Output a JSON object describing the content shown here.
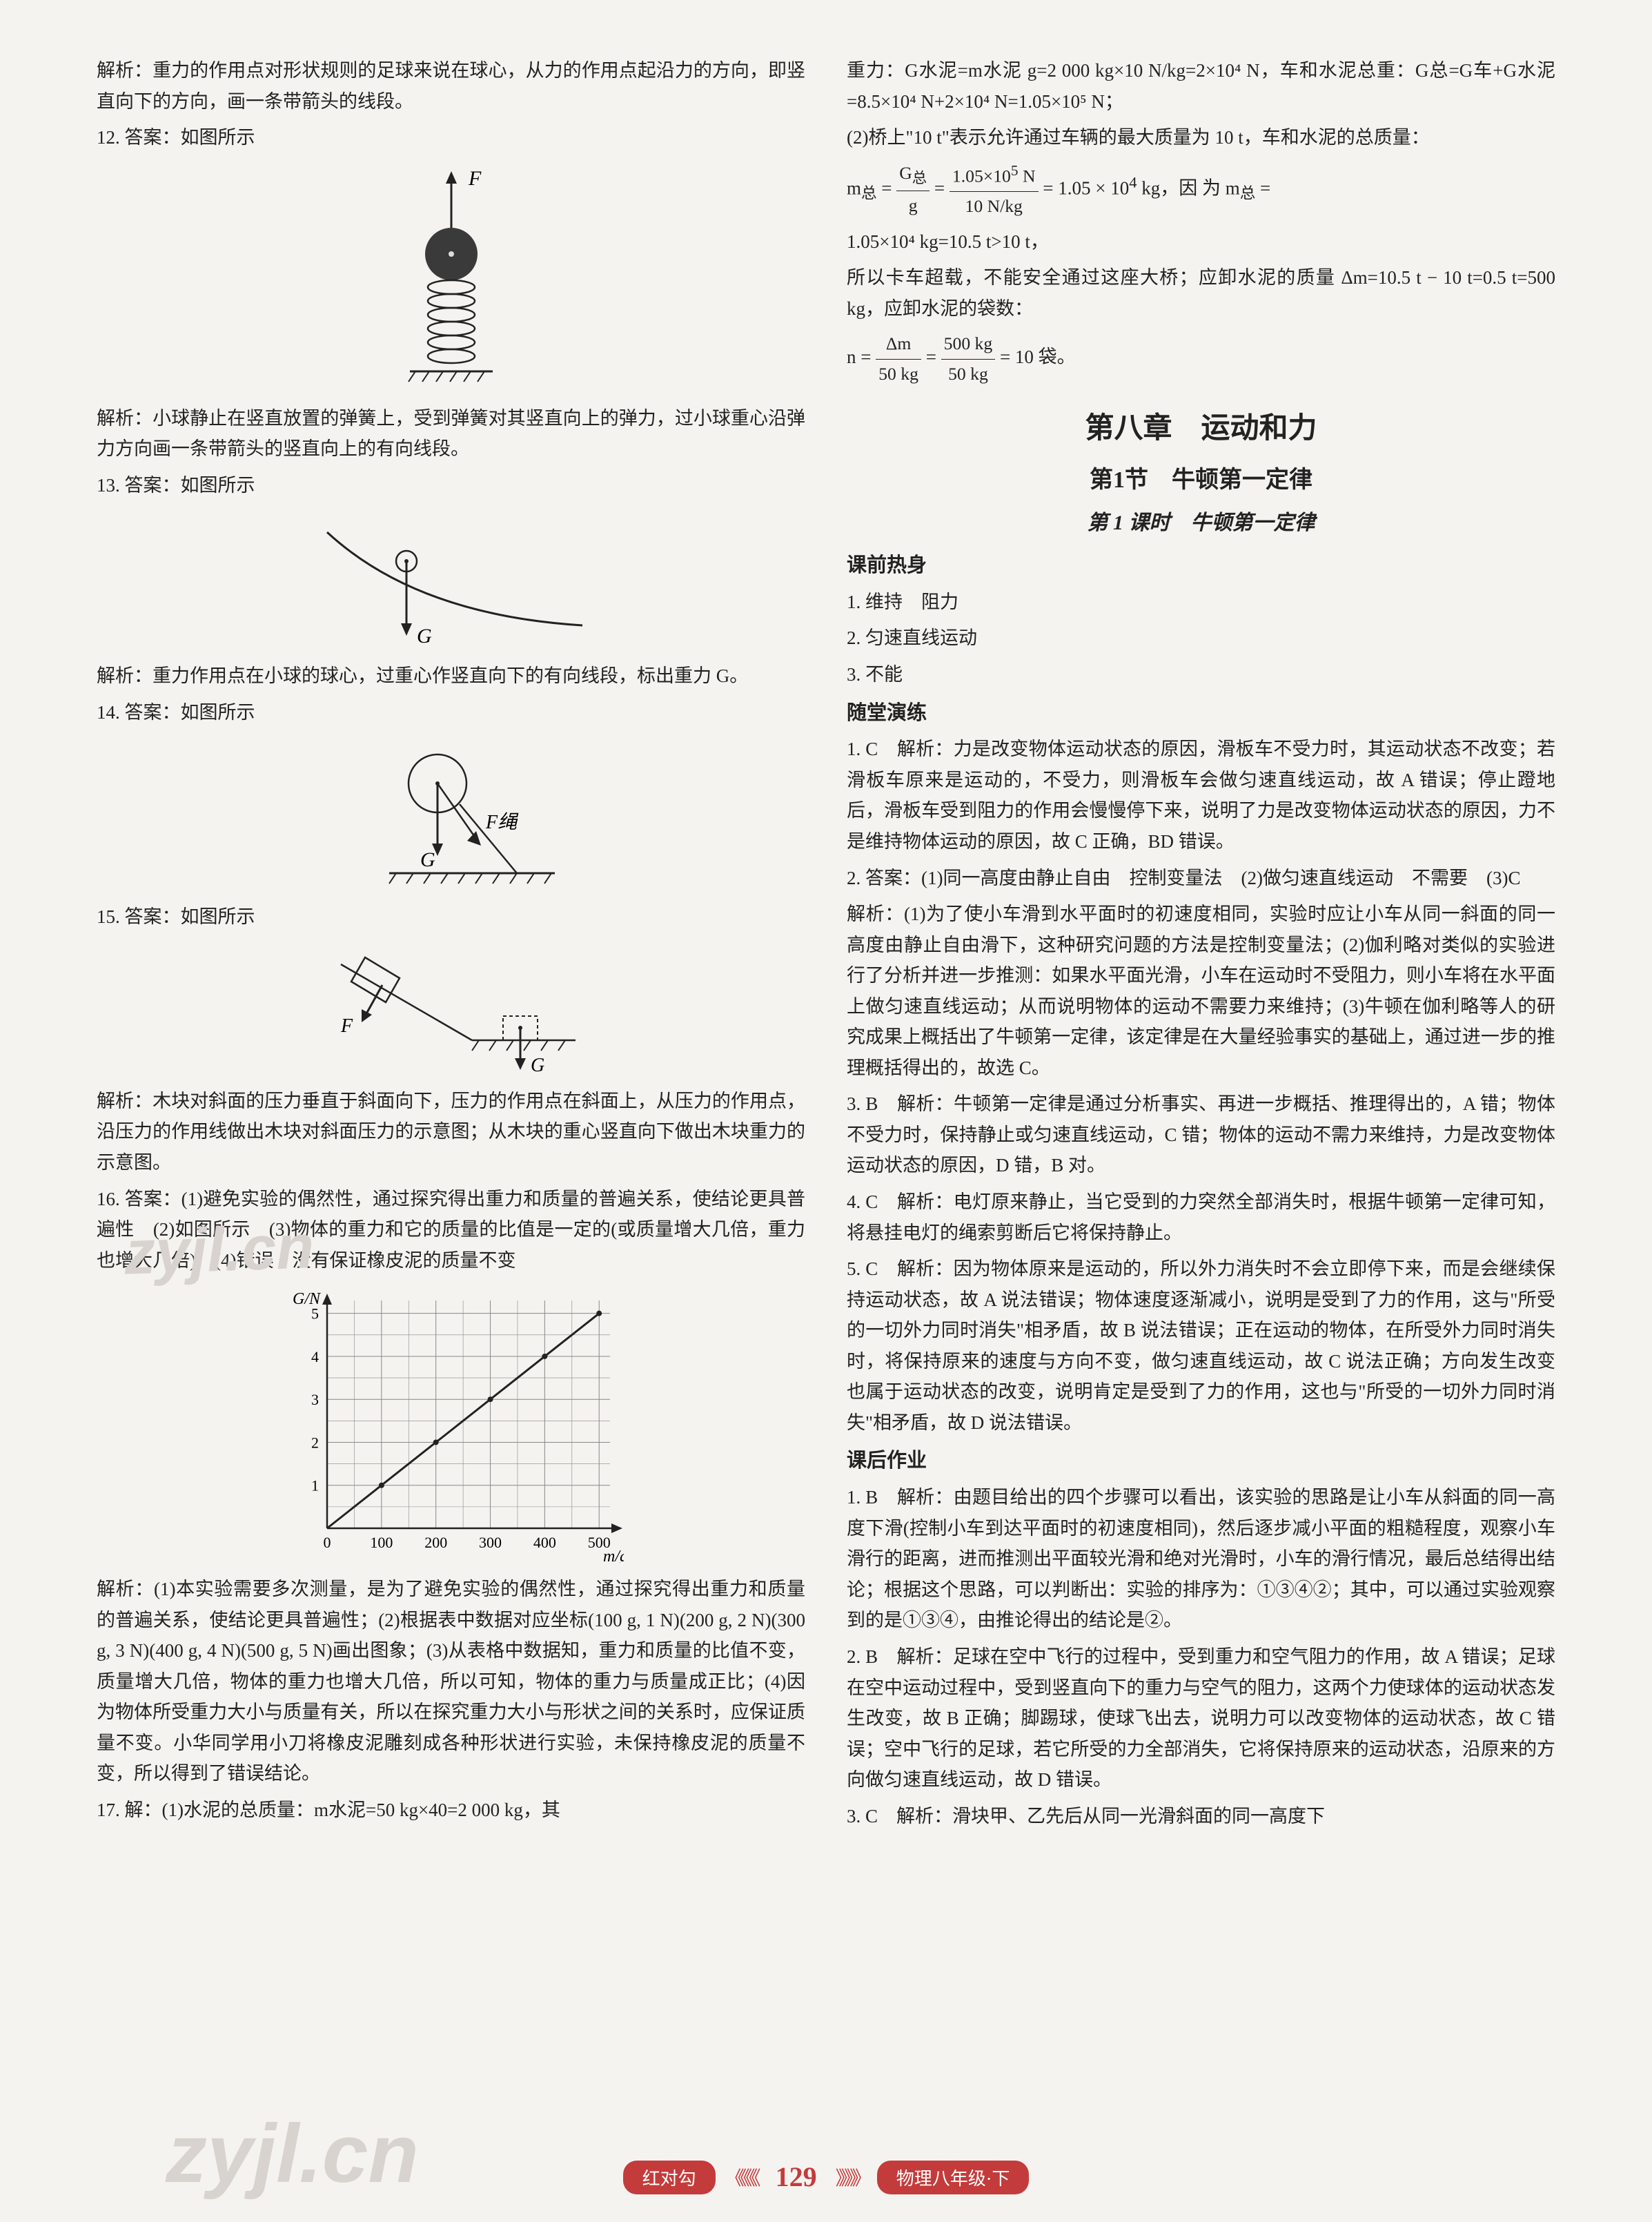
{
  "left": {
    "analysis_11": "解析：重力的作用点对形状规则的足球来说在球心，从力的作用点起沿力的方向，即竖直向下的方向，画一条带箭头的线段。",
    "item12_label": "12. 答案：如图所示",
    "item12_analysis": "解析：小球静止在竖直放置的弹簧上，受到弹簧对其竖直向上的弹力，过小球重心沿弹力方向画一条带箭头的竖直向上的有向线段。",
    "item13_label": "13. 答案：如图所示",
    "item13_analysis": "解析：重力作用点在小球的球心，过重心作竖直向下的有向线段，标出重力 G。",
    "item14_label": "14. 答案：如图所示",
    "item15_label": "15. 答案：如图所示",
    "item15_analysis": "解析：木块对斜面的压力垂直于斜面向下，压力的作用点在斜面上，从压力的作用点，沿压力的作用线做出木块对斜面压力的示意图；从木块的重心竖直向下做出木块重力的示意图。",
    "item16_label": "16. 答案：(1)避免实验的偶然性，通过探究得出重力和质量的普遍关系，使结论更具普遍性　(2)如图所示　(3)物体的重力和它的质量的比值是一定的(或质量增大几倍，重力也增大几倍)　(4)错误　没有保证橡皮泥的质量不变",
    "item16_analysis": "解析：(1)本实验需要多次测量，是为了避免实验的偶然性，通过探究得出重力和质量的普遍关系，使结论更具普遍性；(2)根据表中数据对应坐标(100 g, 1 N)(200 g, 2 N)(300 g, 3 N)(400 g, 4 N)(500 g, 5 N)画出图象；(3)从表格中数据知，重力和质量的比值不变，质量增大几倍，物体的重力也增大几倍，所以可知，物体的重力与质量成正比；(4)因为物体所受重力大小与质量有关，所以在探究重力大小与形状之间的关系时，应保证质量不变。小华同学用小刀将橡皮泥雕刻成各种形状进行实验，未保持橡皮泥的质量不变，所以得到了错误结论。",
    "item17_label": "17. 解：(1)水泥的总质量：m水泥=50 kg×40=2 000 kg，其",
    "chart": {
      "type": "line",
      "x_label": "m/g",
      "y_label": "G/N",
      "x_ticks": [
        0,
        100,
        200,
        300,
        400,
        500
      ],
      "y_ticks": [
        0,
        1,
        2,
        3,
        4,
        5
      ],
      "points": [
        [
          0,
          0
        ],
        [
          100,
          1
        ],
        [
          200,
          2
        ],
        [
          300,
          3
        ],
        [
          400,
          4
        ],
        [
          500,
          5
        ]
      ],
      "line_color": "#222222",
      "grid_color": "#888888",
      "background": "#f5f3f0",
      "xlim": [
        0,
        520
      ],
      "ylim": [
        0,
        5.3
      ]
    },
    "fig12": {
      "label_F": "F",
      "ball_color": "#3a3a3a",
      "spring_coils": 6
    },
    "fig13": {
      "label_G": "G",
      "ball_radius": 12
    },
    "fig14": {
      "label_G": "G",
      "label_F": "F绳"
    },
    "fig15": {
      "label_G": "G",
      "label_F": "F"
    }
  },
  "right": {
    "cont_17": "重力：G水泥=m水泥 g=2 000 kg×10 N/kg=2×10⁴ N，车和水泥总重：G总=G车+G水泥=8.5×10⁴ N+2×10⁴ N=1.05×10⁵ N；",
    "cont_17b": "(2)桥上\"10 t\"表示允许通过车辆的最大质量为 10 t，车和水泥的总质量：",
    "eq_m": "m总 = G总 / g = 1.05×10⁵ N / 10 N/kg = 1.05 × 10⁴ kg，因 为 m总 =",
    "eq_m2": "1.05×10⁴ kg=10.5 t>10 t，",
    "cont_17c": "所以卡车超载，不能安全通过这座大桥；应卸水泥的质量 Δm=10.5 t − 10 t=0.5 t=500 kg，应卸水泥的袋数：",
    "eq_n": "n = Δm / 50 kg = 500 kg / 50 kg = 10 袋。",
    "chapter": "第八章　运动和力",
    "section": "第1节　牛顿第一定律",
    "subsection": "第 1 课时　牛顿第一定律",
    "preclass_h": "课前热身",
    "pre1": "1. 维持　阻力",
    "pre2": "2. 匀速直线运动",
    "pre3": "3. 不能",
    "inclass_h": "随堂演练",
    "in1": "1. C　解析：力是改变物体运动状态的原因，滑板车不受力时，其运动状态不改变；若滑板车原来是运动的，不受力，则滑板车会做匀速直线运动，故 A 错误；停止蹬地后，滑板车受到阻力的作用会慢慢停下来，说明了力是改变物体运动状态的原因，力不是维持物体运动的原因，故 C 正确，BD 错误。",
    "in2": "2. 答案：(1)同一高度由静止自由　控制变量法　(2)做匀速直线运动　不需要　(3)C",
    "in2a": "解析：(1)为了使小车滑到水平面时的初速度相同，实验时应让小车从同一斜面的同一高度由静止自由滑下，这种研究问题的方法是控制变量法；(2)伽利略对类似的实验进行了分析并进一步推测：如果水平面光滑，小车在运动时不受阻力，则小车将在水平面上做匀速直线运动；从而说明物体的运动不需要力来维持；(3)牛顿在伽利略等人的研究成果上概括出了牛顿第一定律，该定律是在大量经验事实的基础上，通过进一步的推理概括得出的，故选 C。",
    "in3": "3. B　解析：牛顿第一定律是通过分析事实、再进一步概括、推理得出的，A 错；物体不受力时，保持静止或匀速直线运动，C 错；物体的运动不需力来维持，力是改变物体运动状态的原因，D 错，B 对。",
    "in4": "4. C　解析：电灯原来静止，当它受到的力突然全部消失时，根据牛顿第一定律可知，将悬挂电灯的绳索剪断后它将保持静止。",
    "in5": "5. C　解析：因为物体原来是运动的，所以外力消失时不会立即停下来，而是会继续保持运动状态，故 A 说法错误；物体速度逐渐减小，说明是受到了力的作用，这与\"所受的一切外力同时消失\"相矛盾，故 B 说法错误；正在运动的物体，在所受外力同时消失时，将保持原来的速度与方向不变，做匀速直线运动，故 C 说法正确；方向发生改变也属于运动状态的改变，说明肯定是受到了力的作用，这也与\"所受的一切外力同时消失\"相矛盾，故 D 说法错误。",
    "postclass_h": "课后作业",
    "post1": "1. B　解析：由题目给出的四个步骤可以看出，该实验的思路是让小车从斜面的同一高度下滑(控制小车到达平面时的初速度相同)，然后逐步减小平面的粗糙程度，观察小车滑行的距离，进而推测出平面较光滑和绝对光滑时，小车的滑行情况，最后总结得出结论；根据这个思路，可以判断出：实验的排序为：①③④②；其中，可以通过实验观察到的是①③④，由推论得出的结论是②。",
    "post2": "2. B　解析：足球在空中飞行的过程中，受到重力和空气阻力的作用，故 A 错误；足球在空中运动过程中，受到竖直向下的重力与空气的阻力，这两个力使球体的运动状态发生改变，故 B 正确；脚踢球，使球飞出去，说明力可以改变物体的运动状态，故 C 错误；空中飞行的足球，若它所受的力全部消失，它将保持原来的运动状态，沿原来的方向做匀速直线运动，故 D 错误。",
    "post3": "3. C　解析：滑块甲、乙先后从同一光滑斜面的同一高度下"
  },
  "footer": {
    "left_pill": "红对勾",
    "page_num": "129",
    "right_pill": "物理八年级·下"
  },
  "watermark": "zyjl.cn"
}
